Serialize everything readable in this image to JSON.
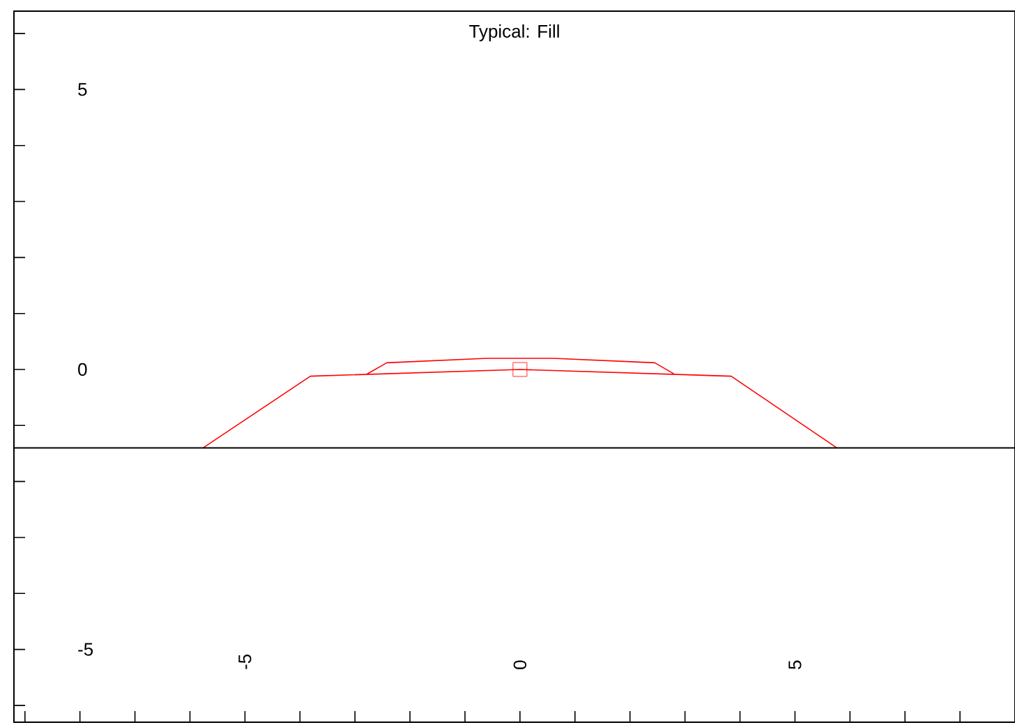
{
  "chart_data": {
    "type": "line",
    "title": "Typical: Fill",
    "xlim": [
      -9.2,
      9.0
    ],
    "ylim": [
      -6.3,
      6.4
    ],
    "xticks": [
      {
        "value": -9,
        "label": null
      },
      {
        "value": -8,
        "label": null
      },
      {
        "value": -7,
        "label": null
      },
      {
        "value": -6,
        "label": null
      },
      -5,
      {
        "value": -4,
        "label": null
      },
      {
        "value": -3,
        "label": null
      },
      {
        "value": -2,
        "label": null
      },
      {
        "value": -1,
        "label": null
      },
      0,
      {
        "value": 1,
        "label": null
      },
      {
        "value": 2,
        "label": null
      },
      {
        "value": 3,
        "label": null
      },
      {
        "value": 4,
        "label": null
      },
      5,
      {
        "value": 6,
        "label": null
      },
      {
        "value": 7,
        "label": null
      },
      {
        "value": 8,
        "label": null
      }
    ],
    "yticks": [
      {
        "value": -6,
        "label": null
      },
      -5,
      {
        "value": -4,
        "label": null
      },
      {
        "value": -3,
        "label": null
      },
      {
        "value": -2,
        "label": null
      },
      {
        "value": -1,
        "label": null
      },
      0,
      {
        "value": 1,
        "label": null
      },
      {
        "value": 2,
        "label": null
      },
      {
        "value": 3,
        "label": null
      },
      {
        "value": 4,
        "label": null
      },
      5,
      {
        "value": 6,
        "label": null
      }
    ],
    "marker": "none",
    "series": [
      {
        "color": "#ff0000",
        "x": [
          -5.76,
          -3.81,
          0,
          3.84,
          5.76
        ],
        "values": [
          -1.4,
          -0.12,
          0,
          -0.12,
          -1.4
        ]
      },
      {
        "color": "#ff0000",
        "x": [
          -2.78,
          -2.42,
          -0.6,
          0.6,
          2.45,
          2.8
        ],
        "values": [
          -0.08,
          0.12,
          0.2,
          0.2,
          0.12,
          -0.08
        ]
      },
      {
        "type": "scatter",
        "marker": "square",
        "color": "#ff0000",
        "x": [
          0
        ],
        "values": [
          0
        ]
      }
    ],
    "ref_lines": [
      {
        "axis": "y",
        "value": -1.4,
        "color": "#000000"
      }
    ]
  }
}
